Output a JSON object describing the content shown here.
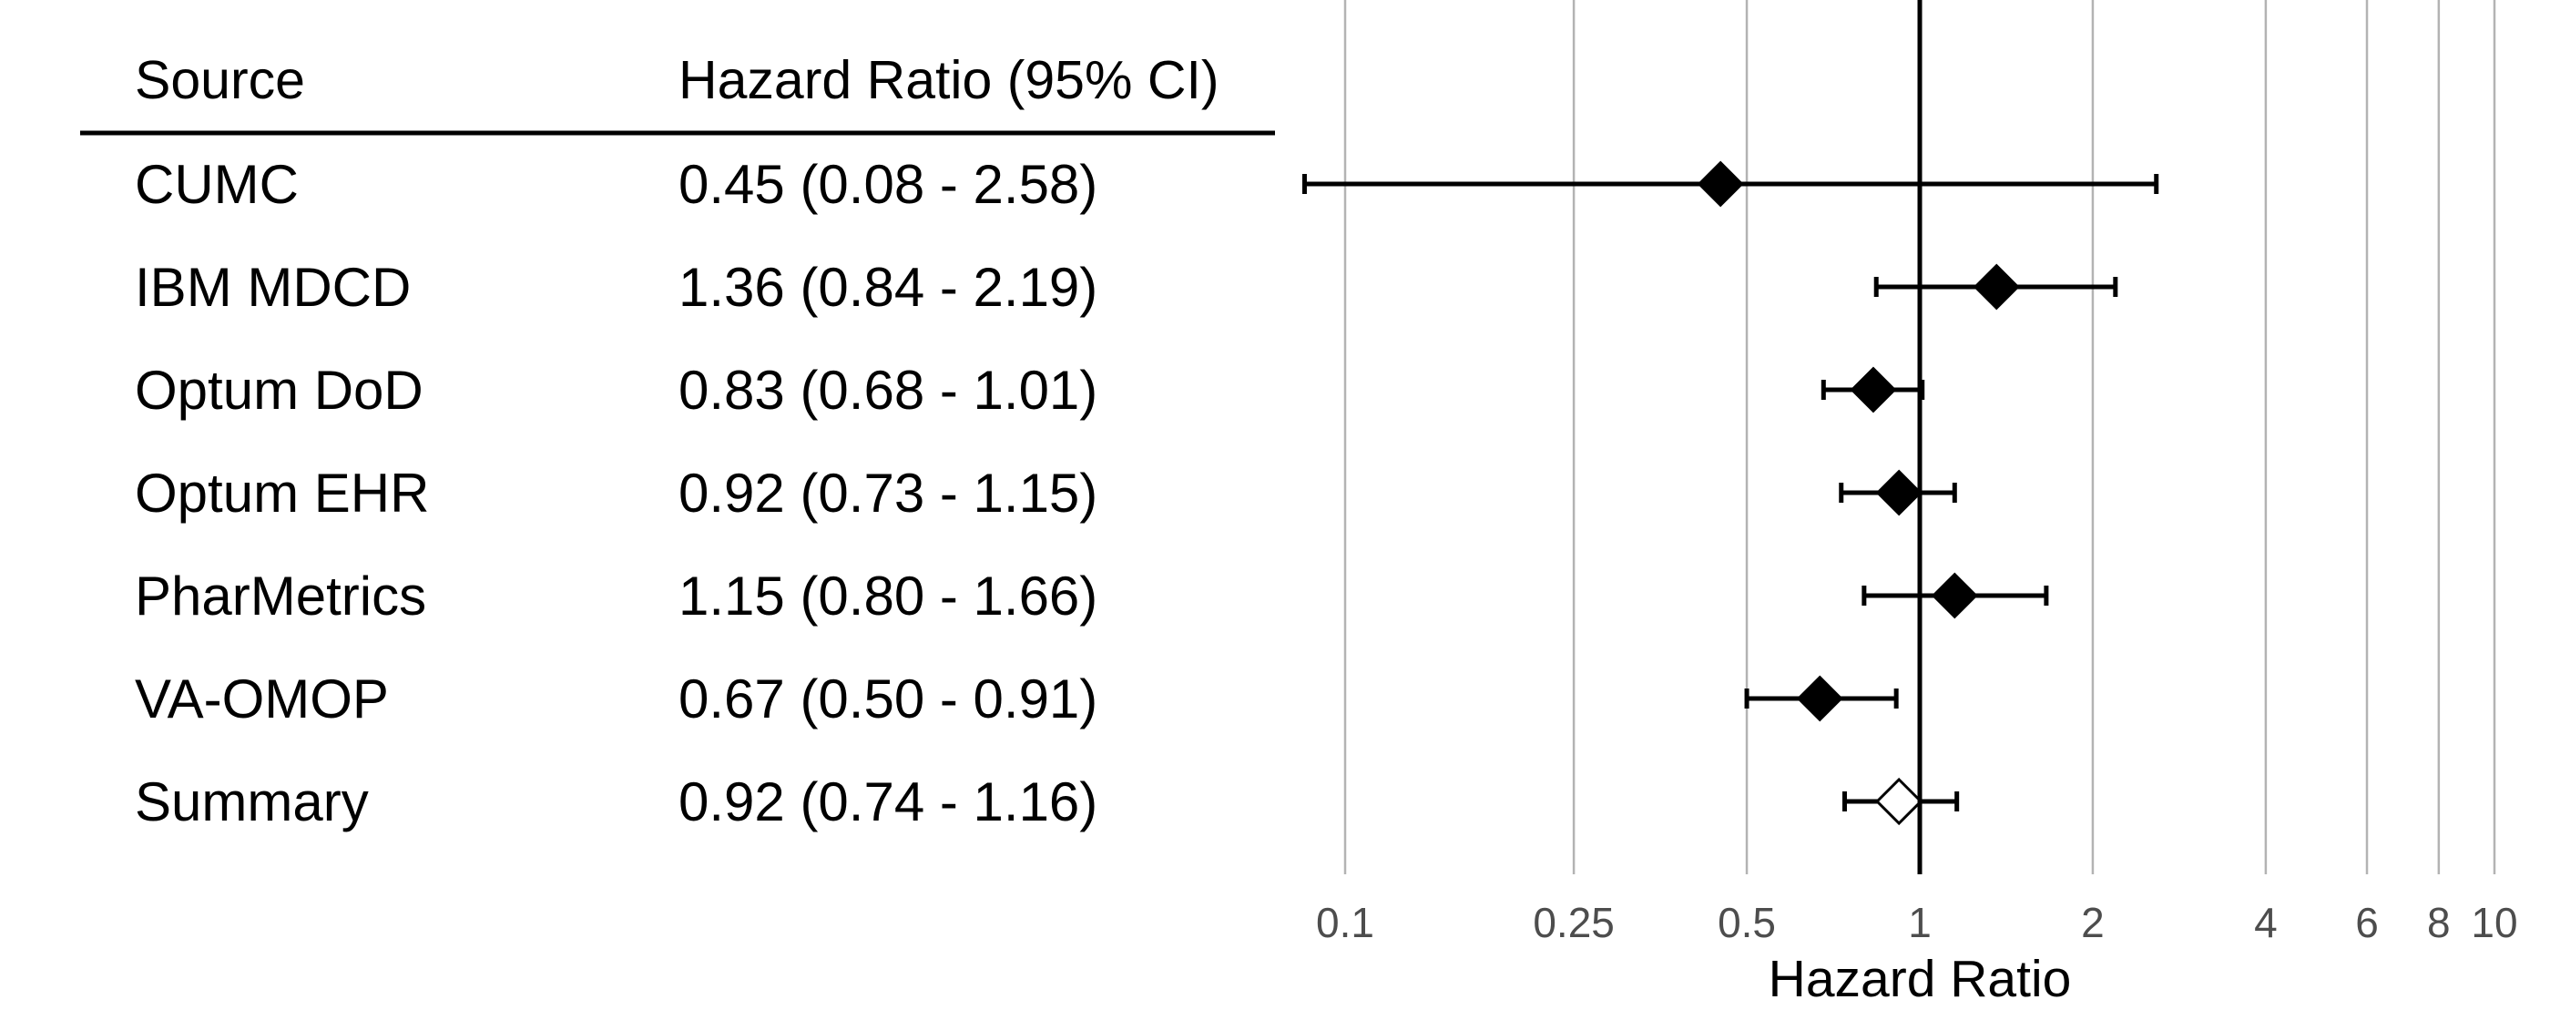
{
  "chart_data": {
    "type": "forest",
    "title": "",
    "headers": {
      "source": "Source",
      "estimate": "Hazard Ratio (95% CI)"
    },
    "xlabel": "Hazard Ratio",
    "x_scale": "log",
    "xlim": [
      0.085,
      10.5
    ],
    "reference_line": 1,
    "grid": true,
    "x_ticks": [
      {
        "value": 0.1,
        "label": "0.1"
      },
      {
        "value": 0.25,
        "label": "0.25"
      },
      {
        "value": 0.5,
        "label": "0.5"
      },
      {
        "value": 1,
        "label": "1"
      },
      {
        "value": 2,
        "label": "2"
      },
      {
        "value": 4,
        "label": "4"
      },
      {
        "value": 6,
        "label": "6"
      },
      {
        "value": 8,
        "label": "8"
      },
      {
        "value": 10,
        "label": "10"
      }
    ],
    "rows": [
      {
        "source": "CUMC",
        "label": "0.45 (0.08 - 2.58)",
        "hr": 0.45,
        "lower": 0.08,
        "upper": 2.58,
        "summary": false
      },
      {
        "source": "IBM MDCD",
        "label": "1.36 (0.84 - 2.19)",
        "hr": 1.36,
        "lower": 0.84,
        "upper": 2.19,
        "summary": false
      },
      {
        "source": "Optum DoD",
        "label": "0.83 (0.68 - 1.01)",
        "hr": 0.83,
        "lower": 0.68,
        "upper": 1.01,
        "summary": false
      },
      {
        "source": "Optum EHR",
        "label": "0.92 (0.73 - 1.15)",
        "hr": 0.92,
        "lower": 0.73,
        "upper": 1.15,
        "summary": false
      },
      {
        "source": "PharMetrics",
        "label": "1.15 (0.80 - 1.66)",
        "hr": 1.15,
        "lower": 0.8,
        "upper": 1.66,
        "summary": false
      },
      {
        "source": "VA-OMOP",
        "label": "0.67 (0.50 - 0.91)",
        "hr": 0.67,
        "lower": 0.5,
        "upper": 0.91,
        "summary": false
      },
      {
        "source": "Summary",
        "label": "0.92 (0.74 - 1.16)",
        "hr": 0.92,
        "lower": 0.74,
        "upper": 1.16,
        "summary": true
      }
    ],
    "colors": {
      "estimate_fill": "#000000",
      "summary_fill": "#ffffff",
      "grid": "#b3b3b3",
      "tick_text": "#4d4d4d"
    }
  }
}
